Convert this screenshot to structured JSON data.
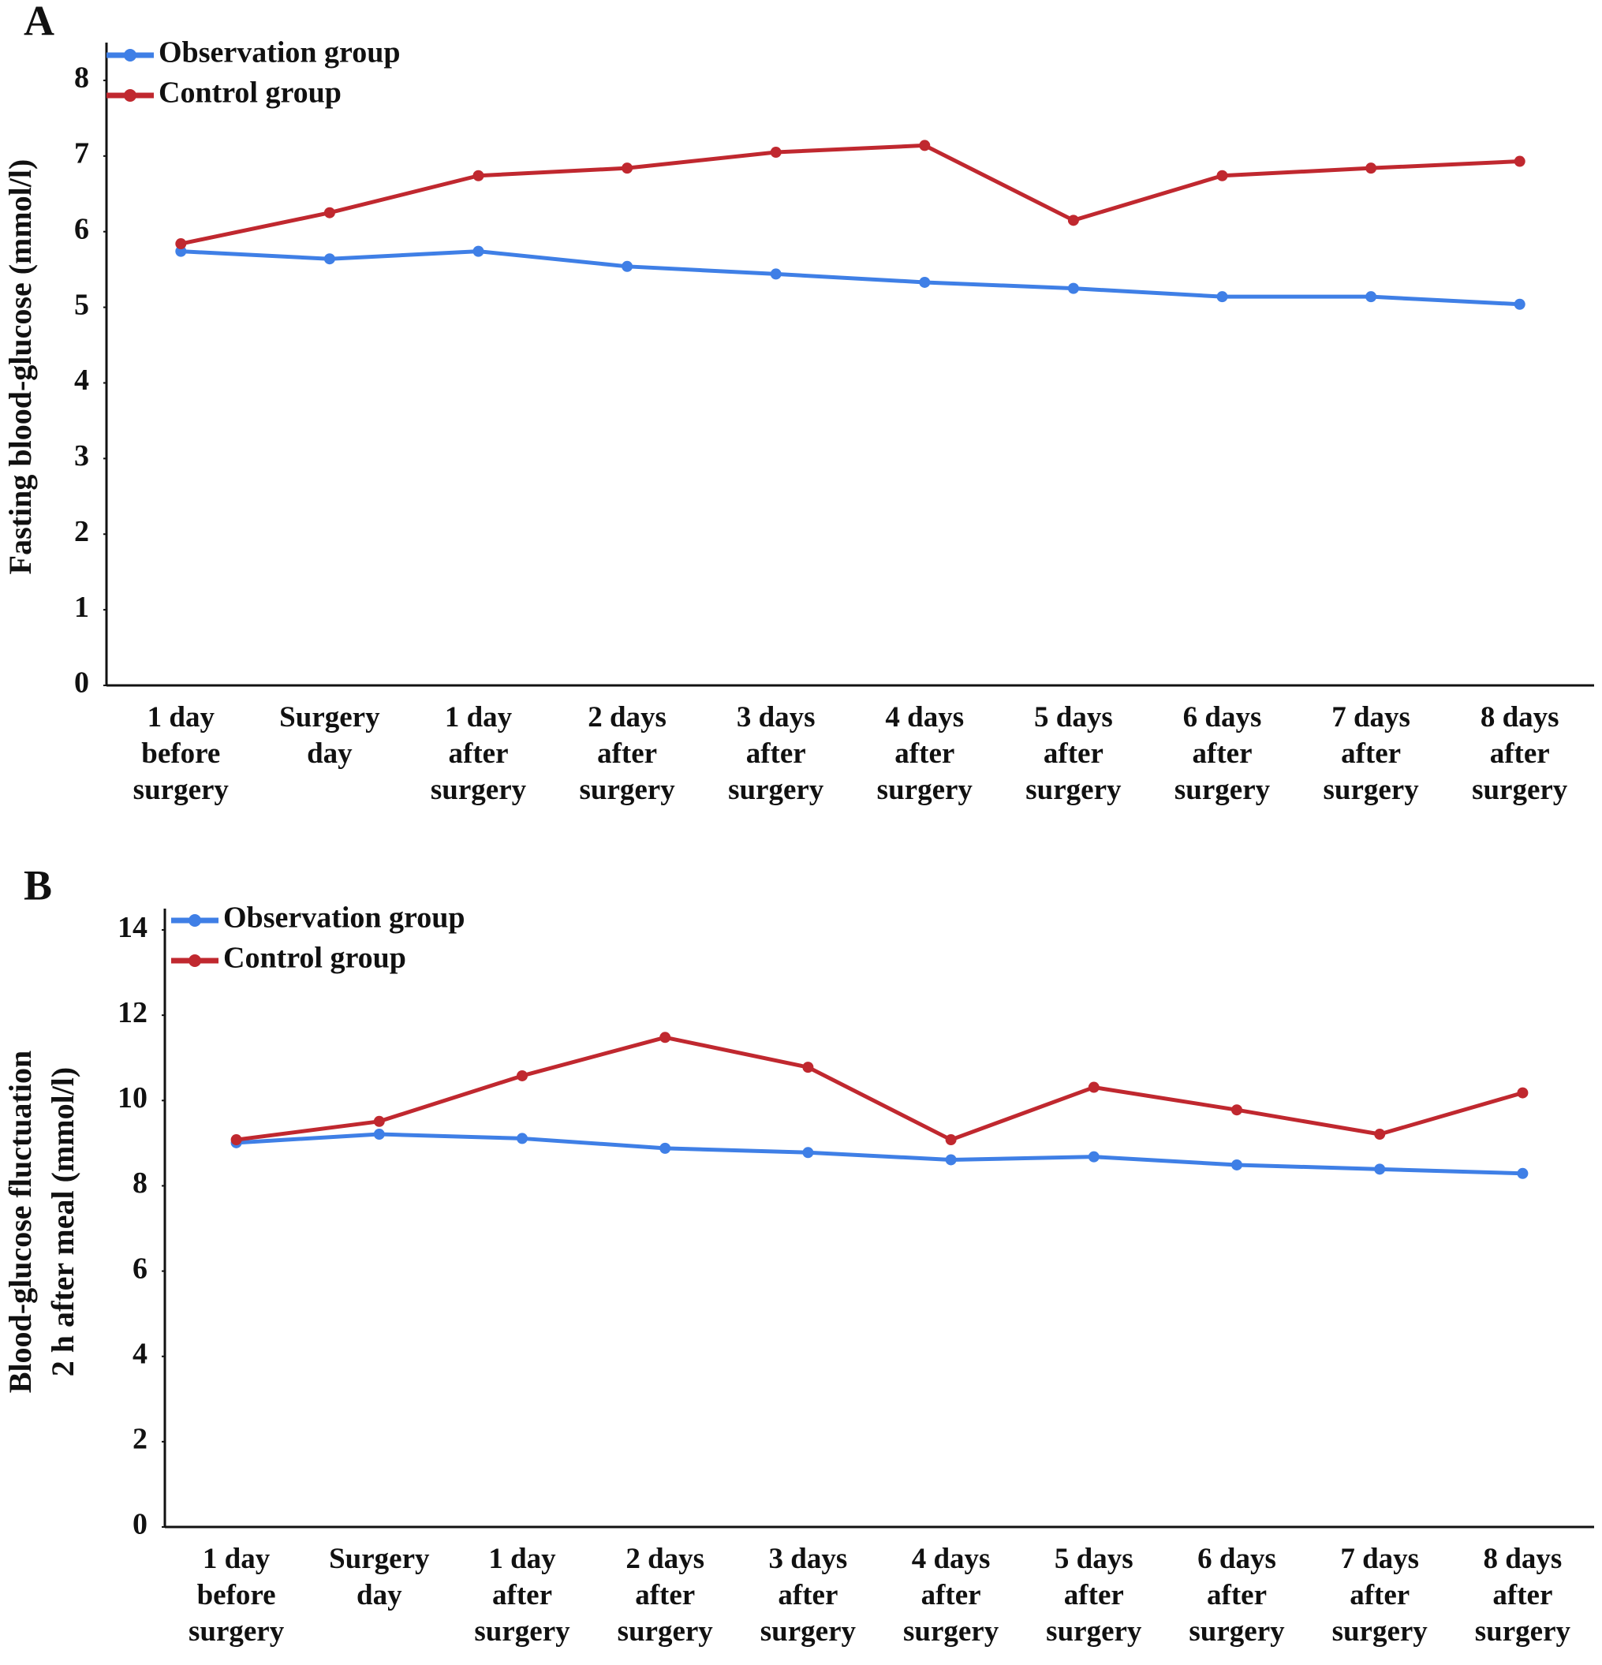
{
  "chart_data": [
    {
      "type": "line",
      "panel": "A",
      "ylabel": [
        "Fasting blood-glucose (mmol/l)"
      ],
      "categories": [
        "1 day before surgery",
        "Surgery day",
        "1 day after surgery",
        "2 days after surgery",
        "3 days after surgery",
        "4 days after surgery",
        "5 days after surgery",
        "6 days after surgery",
        "7 days after surgery",
        "8 days after surgery"
      ],
      "series": [
        {
          "name": "Observation group",
          "color": "#3f7fe6",
          "values": [
            5.74,
            5.64,
            5.74,
            5.54,
            5.44,
            5.33,
            5.25,
            5.14,
            5.14,
            5.04
          ]
        },
        {
          "name": "Control group",
          "color": "#c0282f",
          "values": [
            5.84,
            6.25,
            6.74,
            6.84,
            7.05,
            7.14,
            6.15,
            6.74,
            6.84,
            6.93
          ]
        }
      ],
      "ylim": [
        0,
        8.5
      ],
      "yticks": [
        0,
        1,
        2,
        3,
        4,
        5,
        6,
        7,
        8
      ],
      "grid": false,
      "legend": "top-left"
    },
    {
      "type": "line",
      "panel": "B",
      "ylabel": [
        "Blood-glucose fluctuation",
        "2 h after meal (mmol/l)"
      ],
      "categories": [
        "1 day before surgery",
        "Surgery day",
        "1 day after surgery",
        "2 days after surgery",
        "3 days after surgery",
        "4 days after surgery",
        "5 days after surgery",
        "6 days after surgery",
        "7 days after surgery",
        "8 days after surgery"
      ],
      "series": [
        {
          "name": "Observation group",
          "color": "#3f7fe6",
          "values": [
            9.01,
            9.21,
            9.11,
            8.88,
            8.78,
            8.61,
            8.68,
            8.49,
            8.39,
            8.29
          ]
        },
        {
          "name": "Control group",
          "color": "#c0282f",
          "values": [
            9.08,
            9.51,
            10.58,
            11.48,
            10.78,
            9.08,
            10.31,
            9.78,
            9.21,
            10.18
          ]
        }
      ],
      "ylim": [
        0,
        14.5
      ],
      "yticks": [
        0,
        2,
        4,
        6,
        8,
        10,
        12,
        14
      ],
      "grid": false,
      "legend": "top-left"
    }
  ]
}
